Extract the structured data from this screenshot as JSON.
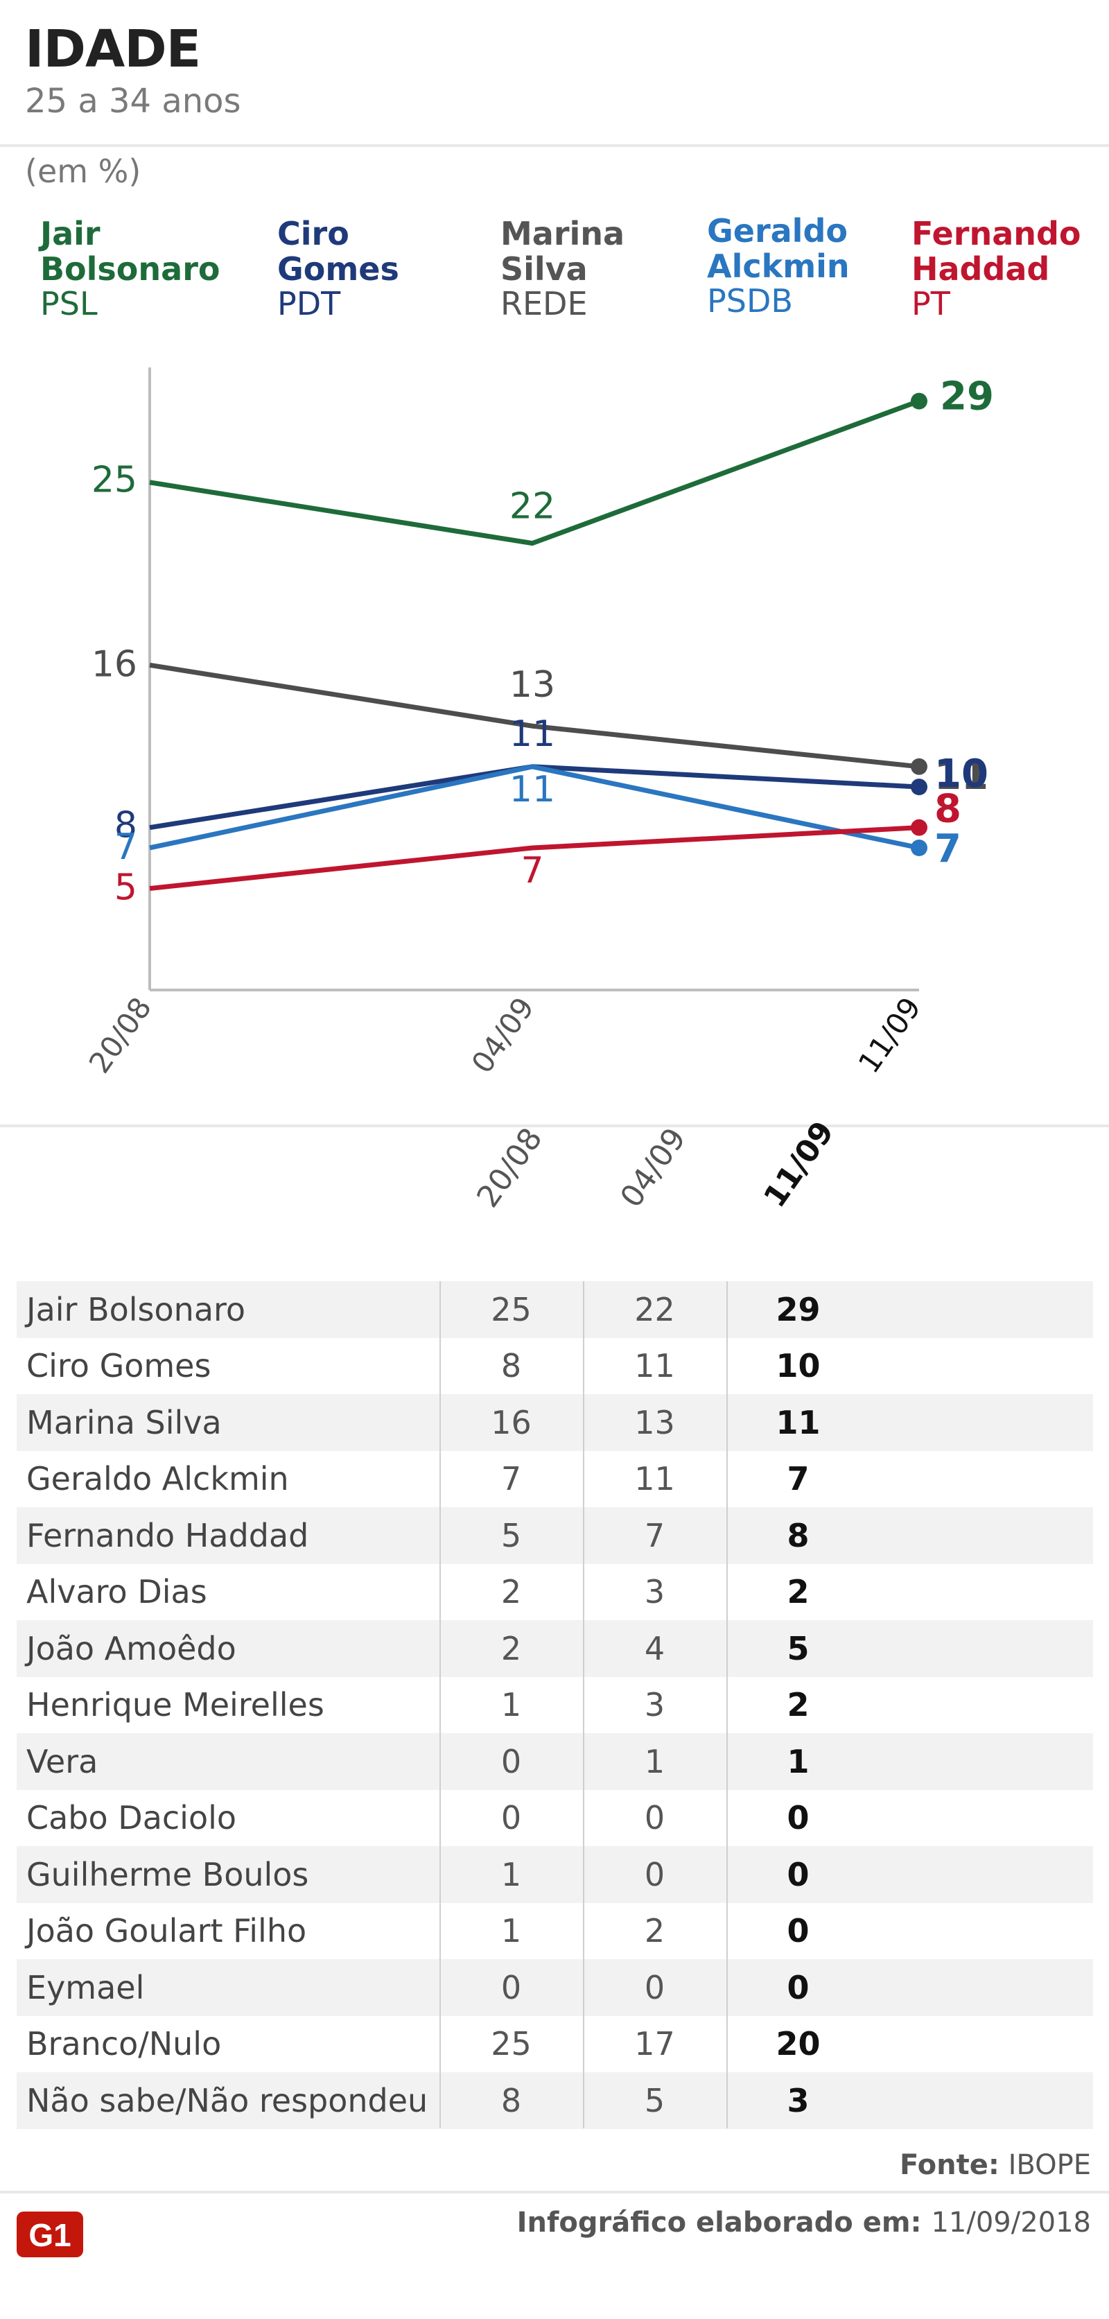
{
  "header": {
    "title": "IDADE",
    "subtitle": "25 a 34 anos",
    "unit": "(em %)"
  },
  "candidates": [
    {
      "name": "Jair\nBolsonaro",
      "party": "PSL",
      "color": "#1e6b3a"
    },
    {
      "name": "Ciro\nGomes",
      "party": "PDT",
      "color": "#1f3a7a"
    },
    {
      "name": "Marina\nSilva",
      "party": "REDE",
      "color": "#555555"
    },
    {
      "name": "Geraldo\nAlckmin",
      "party": "PSDB",
      "color": "#2a76c0"
    },
    {
      "name": "Fernando\nHaddad",
      "party": "PT",
      "color": "#c0152f"
    }
  ],
  "chart_data": {
    "type": "line",
    "x": [
      "20/08",
      "04/09",
      "11/09"
    ],
    "ylim": [
      0,
      31
    ],
    "series": [
      {
        "name": "Jair Bolsonaro",
        "values": [
          25,
          22,
          29
        ],
        "color": "#1e6b3a"
      },
      {
        "name": "Marina Silva",
        "values": [
          16,
          13,
          11
        ],
        "color": "#4d4d4d"
      },
      {
        "name": "Ciro Gomes",
        "values": [
          8,
          11,
          10
        ],
        "color": "#1f3a7a"
      },
      {
        "name": "Geraldo Alckmin",
        "values": [
          7,
          11,
          7
        ],
        "color": "#2a76c0"
      },
      {
        "name": "Fernando Haddad",
        "values": [
          5,
          7,
          8
        ],
        "color": "#c0152f"
      }
    ]
  },
  "table": {
    "columns": [
      "20/08",
      "04/09",
      "11/09"
    ],
    "rows": [
      {
        "name": "Jair Bolsonaro",
        "values": [
          "25",
          "22",
          "29"
        ]
      },
      {
        "name": "Ciro Gomes",
        "values": [
          "8",
          "11",
          "10"
        ]
      },
      {
        "name": "Marina Silva",
        "values": [
          "16",
          "13",
          "11"
        ]
      },
      {
        "name": "Geraldo Alckmin",
        "values": [
          "7",
          "11",
          "7"
        ]
      },
      {
        "name": "Fernando Haddad",
        "values": [
          "5",
          "7",
          "8"
        ]
      },
      {
        "name": "Alvaro Dias",
        "values": [
          "2",
          "3",
          "2"
        ]
      },
      {
        "name": "João Amoêdo",
        "values": [
          "2",
          "4",
          "5"
        ]
      },
      {
        "name": "Henrique Meirelles",
        "values": [
          "1",
          "3",
          "2"
        ]
      },
      {
        "name": "Vera",
        "values": [
          "0",
          "1",
          "1"
        ]
      },
      {
        "name": "Cabo Daciolo",
        "values": [
          "0",
          "0",
          "0"
        ]
      },
      {
        "name": "Guilherme Boulos",
        "values": [
          "1",
          "0",
          "0"
        ]
      },
      {
        "name": "João Goulart Filho",
        "values": [
          "1",
          "2",
          "0"
        ]
      },
      {
        "name": "Eymael",
        "values": [
          "0",
          "0",
          "0"
        ]
      },
      {
        "name": "Branco/Nulo",
        "values": [
          "25",
          "17",
          "20"
        ]
      },
      {
        "name": "Não sabe/Não respondeu",
        "values": [
          "8",
          "5",
          "3"
        ]
      }
    ]
  },
  "footer": {
    "source_label": "Fonte:",
    "source": "IBOPE",
    "credit_label": "Infográfico elaborado em:",
    "credit_date": "11/09/2018",
    "logo_text": "G1",
    "logo_color": "#c4170c"
  }
}
